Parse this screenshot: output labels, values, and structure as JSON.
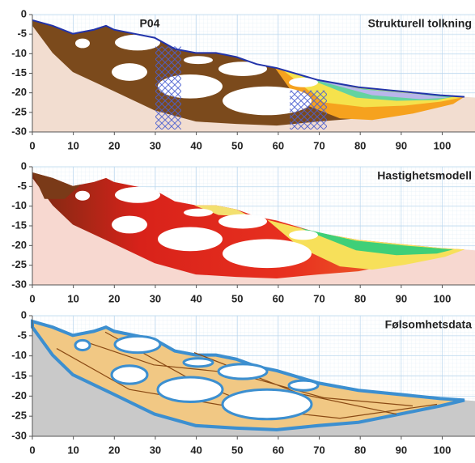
{
  "chart_data": [
    {
      "type": "section",
      "label": "P04",
      "title": "Strukturell tolkning",
      "xlim": [
        0,
        108
      ],
      "ylim": [
        -30,
        0
      ],
      "xticks": [
        0,
        10,
        20,
        30,
        40,
        50,
        60,
        70,
        80,
        90,
        100
      ],
      "yticks": [
        0,
        -5,
        -10,
        -15,
        -20,
        -25,
        -30
      ],
      "grid": true
    },
    {
      "type": "section",
      "title": "Hastighetsmodell",
      "xlim": [
        0,
        108
      ],
      "ylim": [
        -30,
        0
      ],
      "xticks": [
        0,
        10,
        20,
        30,
        40,
        50,
        60,
        70,
        80,
        90,
        100
      ],
      "yticks": [
        0,
        -5,
        -10,
        -15,
        -20,
        -25,
        -30
      ],
      "grid": true
    },
    {
      "type": "section",
      "title": "Følsomhetsdata",
      "xlim": [
        0,
        108
      ],
      "ylim": [
        -30,
        0
      ],
      "xticks": [
        0,
        10,
        20,
        30,
        40,
        50,
        60,
        70,
        80,
        90,
        100
      ],
      "yticks": [
        0,
        -5,
        -10,
        -15,
        -20,
        -25,
        -30
      ],
      "grid": true
    }
  ]
}
